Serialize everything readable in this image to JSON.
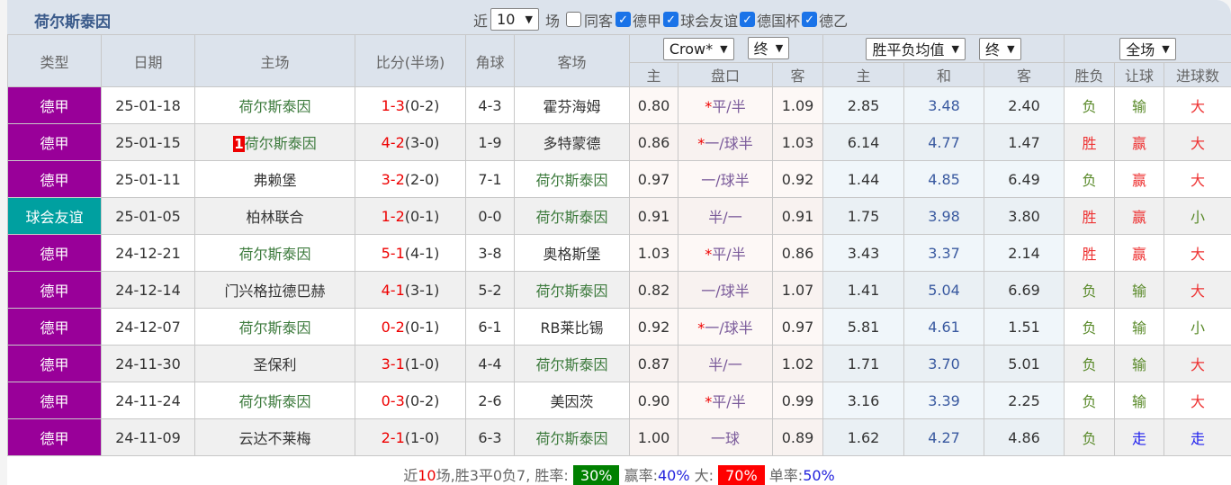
{
  "title": "荷尔斯泰因",
  "filters": {
    "recent_label": "近",
    "recent_value": "10",
    "unit": "场",
    "same_label": "同客",
    "same_checked": false,
    "leagues": [
      {
        "label": "德甲",
        "checked": true
      },
      {
        "label": "球会友谊",
        "checked": true
      },
      {
        "label": "德国杯",
        "checked": true
      },
      {
        "label": "德乙",
        "checked": true
      }
    ]
  },
  "headers": {
    "type": "类型",
    "date": "日期",
    "home": "主场",
    "score": "比分(半场)",
    "corner": "角球",
    "away": "客场",
    "crow_select": "Crow*",
    "crow_state": "终",
    "odds_select": "胜平负均值",
    "odds_state": "终",
    "scope_select": "全场",
    "sub": [
      "主",
      "盘口",
      "客",
      "主",
      "和",
      "客",
      "胜负",
      "让球",
      "进球数"
    ]
  },
  "colors": {
    "league": "#990099",
    "friendly": "#00a0a0"
  },
  "rows": [
    {
      "type": "德甲",
      "date": "25-01-18",
      "home": "荷尔斯泰因",
      "home_hl": true,
      "red_card": "",
      "ft": "1-3",
      "ht": "(0-2)",
      "corner": "4-3",
      "away": "霍芬海姆",
      "away_hl": false,
      "ch": "0.80",
      "star": "*",
      "pk": "平/半",
      "ca": "1.09",
      "w": "2.85",
      "d": "3.48",
      "l": "2.40",
      "r1": "负",
      "r2": "输",
      "r3": "大"
    },
    {
      "type": "德甲",
      "date": "25-01-15",
      "home": "荷尔斯泰因",
      "home_hl": true,
      "red_card": "1",
      "ft": "4-2",
      "ht": "(3-0)",
      "corner": "1-9",
      "away": "多特蒙德",
      "away_hl": false,
      "ch": "0.86",
      "star": "*",
      "pk": "一/球半",
      "ca": "1.03",
      "w": "6.14",
      "d": "4.77",
      "l": "1.47",
      "r1": "胜",
      "r2": "赢",
      "r3": "大"
    },
    {
      "type": "德甲",
      "date": "25-01-11",
      "home": "弗赖堡",
      "home_hl": false,
      "red_card": "",
      "ft": "3-2",
      "ht": "(2-0)",
      "corner": "7-1",
      "away": "荷尔斯泰因",
      "away_hl": true,
      "ch": "0.97",
      "star": "",
      "pk": "一/球半",
      "ca": "0.92",
      "w": "1.44",
      "d": "4.85",
      "l": "6.49",
      "r1": "负",
      "r2": "赢",
      "r3": "大"
    },
    {
      "type": "球会友谊",
      "date": "25-01-05",
      "home": "柏林联合",
      "home_hl": false,
      "red_card": "",
      "ft": "1-2",
      "ht": "(0-1)",
      "corner": "0-0",
      "away": "荷尔斯泰因",
      "away_hl": true,
      "ch": "0.91",
      "star": "",
      "pk": "半/一",
      "ca": "0.91",
      "w": "1.75",
      "d": "3.98",
      "l": "3.80",
      "r1": "胜",
      "r2": "赢",
      "r3": "小"
    },
    {
      "type": "德甲",
      "date": "24-12-21",
      "home": "荷尔斯泰因",
      "home_hl": true,
      "red_card": "",
      "ft": "5-1",
      "ht": "(4-1)",
      "corner": "3-8",
      "away": "奥格斯堡",
      "away_hl": false,
      "ch": "1.03",
      "star": "*",
      "pk": "平/半",
      "ca": "0.86",
      "w": "3.43",
      "d": "3.37",
      "l": "2.14",
      "r1": "胜",
      "r2": "赢",
      "r3": "大"
    },
    {
      "type": "德甲",
      "date": "24-12-14",
      "home": "门兴格拉德巴赫",
      "home_hl": false,
      "red_card": "",
      "ft": "4-1",
      "ht": "(3-1)",
      "corner": "5-2",
      "away": "荷尔斯泰因",
      "away_hl": true,
      "ch": "0.82",
      "star": "",
      "pk": "一/球半",
      "ca": "1.07",
      "w": "1.41",
      "d": "5.04",
      "l": "6.69",
      "r1": "负",
      "r2": "输",
      "r3": "大"
    },
    {
      "type": "德甲",
      "date": "24-12-07",
      "home": "荷尔斯泰因",
      "home_hl": true,
      "red_card": "",
      "ft": "0-2",
      "ht": "(0-1)",
      "corner": "6-1",
      "away": "RB莱比锡",
      "away_hl": false,
      "ch": "0.92",
      "star": "*",
      "pk": "一/球半",
      "ca": "0.97",
      "w": "5.81",
      "d": "4.61",
      "l": "1.51",
      "r1": "负",
      "r2": "输",
      "r3": "小"
    },
    {
      "type": "德甲",
      "date": "24-11-30",
      "home": "圣保利",
      "home_hl": false,
      "red_card": "",
      "ft": "3-1",
      "ht": "(1-0)",
      "corner": "4-4",
      "away": "荷尔斯泰因",
      "away_hl": true,
      "ch": "0.87",
      "star": "",
      "pk": "半/一",
      "ca": "1.02",
      "w": "1.71",
      "d": "3.70",
      "l": "5.01",
      "r1": "负",
      "r2": "输",
      "r3": "大"
    },
    {
      "type": "德甲",
      "date": "24-11-24",
      "home": "荷尔斯泰因",
      "home_hl": true,
      "red_card": "",
      "ft": "0-3",
      "ht": "(0-2)",
      "corner": "2-6",
      "away": "美因茨",
      "away_hl": false,
      "ch": "0.90",
      "star": "*",
      "pk": "平/半",
      "ca": "0.99",
      "w": "3.16",
      "d": "3.39",
      "l": "2.25",
      "r1": "负",
      "r2": "输",
      "r3": "大"
    },
    {
      "type": "德甲",
      "date": "24-11-09",
      "home": "云达不莱梅",
      "home_hl": false,
      "red_card": "",
      "ft": "2-1",
      "ht": "(1-0)",
      "corner": "6-3",
      "away": "荷尔斯泰因",
      "away_hl": true,
      "ch": "1.00",
      "star": "",
      "pk": "一球",
      "ca": "0.89",
      "w": "1.62",
      "d": "4.27",
      "l": "4.86",
      "r1": "负",
      "r2": "走",
      "r3": "走"
    }
  ],
  "summary": {
    "p1": "近",
    "games": "10",
    "p2": "场,胜3平0负7, 胜率:",
    "win_rate": "30%",
    "p3": "赢率:",
    "cover_rate": "40%",
    "p4": "大:",
    "big_rate": "70%",
    "p5": "单率:",
    "odd_rate": "50%",
    "win_color": "#008000",
    "big_color": "#ff0000"
  }
}
